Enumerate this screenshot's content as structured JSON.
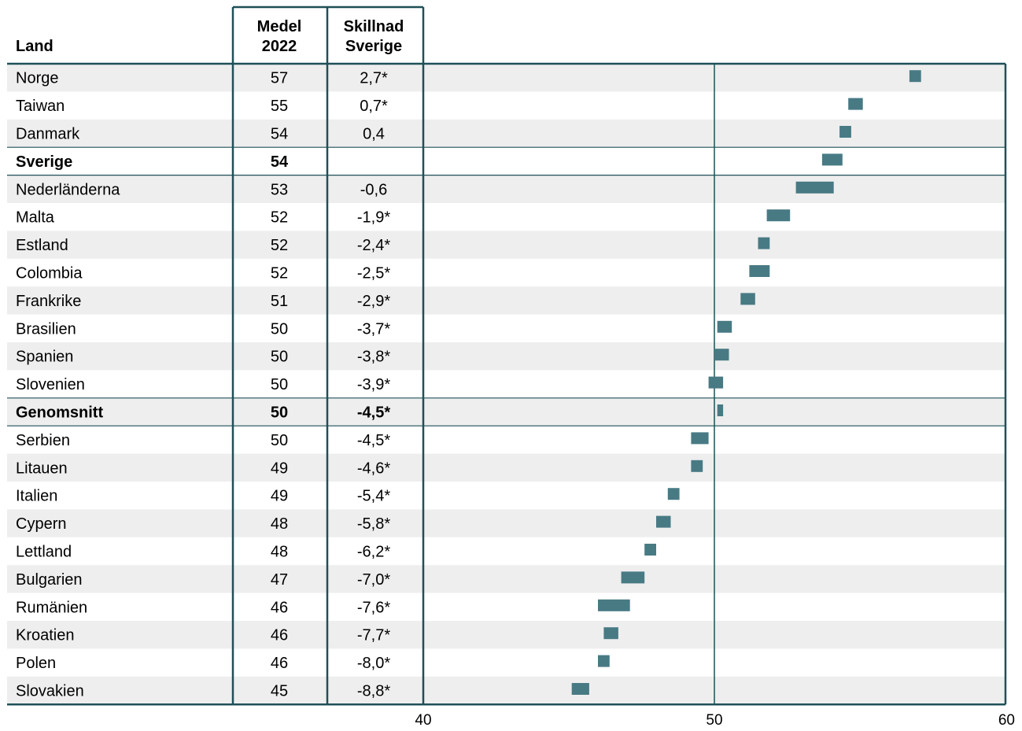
{
  "chart_data": {
    "type": "table",
    "columns": {
      "land": "Land",
      "medel_line1": "Medel",
      "medel_line2": "2022",
      "skillnad_line1": "Skillnad",
      "skillnad_line2": "Sverige"
    },
    "x_ticks": [
      "40",
      "50",
      "60"
    ],
    "xlim": [
      40,
      60
    ],
    "reference_line": 50,
    "bar_color": "#487a84",
    "band_color": "#eeeeee",
    "line_color": "#1f5058",
    "rows": [
      {
        "country": "Norge",
        "mean": "57",
        "diff": "2,7*",
        "lo": 56.7,
        "hi": 57.1,
        "bold": false
      },
      {
        "country": "Taiwan",
        "mean": "55",
        "diff": "0,7*",
        "lo": 54.6,
        "hi": 55.1,
        "bold": false
      },
      {
        "country": "Danmark",
        "mean": "54",
        "diff": "0,4",
        "lo": 54.3,
        "hi": 54.7,
        "bold": false
      },
      {
        "country": "Sverige",
        "mean": "54",
        "diff": "",
        "lo": 53.7,
        "hi": 54.4,
        "bold": true
      },
      {
        "country": "Nederländerna",
        "mean": "53",
        "diff": "-0,6",
        "lo": 52.8,
        "hi": 54.1,
        "bold": false
      },
      {
        "country": "Malta",
        "mean": "52",
        "diff": "-1,9*",
        "lo": 51.8,
        "hi": 52.6,
        "bold": false
      },
      {
        "country": "Estland",
        "mean": "52",
        "diff": "-2,4*",
        "lo": 51.5,
        "hi": 51.9,
        "bold": false
      },
      {
        "country": "Colombia",
        "mean": "52",
        "diff": "-2,5*",
        "lo": 51.2,
        "hi": 51.9,
        "bold": false
      },
      {
        "country": "Frankrike",
        "mean": "51",
        "diff": "-2,9*",
        "lo": 50.9,
        "hi": 51.4,
        "bold": false
      },
      {
        "country": "Brasilien",
        "mean": "50",
        "diff": "-3,7*",
        "lo": 50.1,
        "hi": 50.6,
        "bold": false
      },
      {
        "country": "Spanien",
        "mean": "50",
        "diff": "-3,8*",
        "lo": 50.0,
        "hi": 50.5,
        "bold": false
      },
      {
        "country": "Slovenien",
        "mean": "50",
        "diff": "-3,9*",
        "lo": 49.8,
        "hi": 50.3,
        "bold": false
      },
      {
        "country": "Genomsnitt",
        "mean": "50",
        "diff": "-4,5*",
        "lo": 50.1,
        "hi": 50.3,
        "bold": true
      },
      {
        "country": "Serbien",
        "mean": "50",
        "diff": "-4,5*",
        "lo": 49.2,
        "hi": 49.8,
        "bold": false
      },
      {
        "country": "Litauen",
        "mean": "49",
        "diff": "-4,6*",
        "lo": 49.2,
        "hi": 49.6,
        "bold": false
      },
      {
        "country": "Italien",
        "mean": "49",
        "diff": "-5,4*",
        "lo": 48.4,
        "hi": 48.8,
        "bold": false
      },
      {
        "country": "Cypern",
        "mean": "48",
        "diff": "-5,8*",
        "lo": 48.0,
        "hi": 48.5,
        "bold": false
      },
      {
        "country": "Lettland",
        "mean": "48",
        "diff": "-6,2*",
        "lo": 47.6,
        "hi": 48.0,
        "bold": false
      },
      {
        "country": "Bulgarien",
        "mean": "47",
        "diff": "-7,0*",
        "lo": 46.8,
        "hi": 47.6,
        "bold": false
      },
      {
        "country": "Rumänien",
        "mean": "46",
        "diff": "-7,6*",
        "lo": 46.0,
        "hi": 47.1,
        "bold": false
      },
      {
        "country": "Kroatien",
        "mean": "46",
        "diff": "-7,7*",
        "lo": 46.2,
        "hi": 46.7,
        "bold": false
      },
      {
        "country": "Polen",
        "mean": "46",
        "diff": "-8,0*",
        "lo": 46.0,
        "hi": 46.4,
        "bold": false
      },
      {
        "country": "Slovakien",
        "mean": "45",
        "diff": "-8,8*",
        "lo": 45.1,
        "hi": 45.7,
        "bold": false
      }
    ]
  }
}
